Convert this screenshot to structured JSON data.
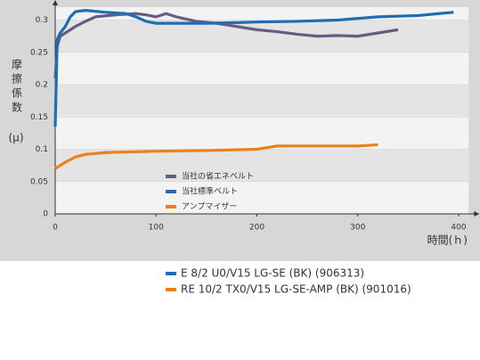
{
  "chart_data": {
    "type": "line",
    "ylabel": "摩擦係数",
    "yunit": "(μ)",
    "xlabel": "時間(ｈ)",
    "xlim": [
      0,
      410
    ],
    "ylim": [
      0,
      0.32
    ],
    "xticks": [
      0,
      100,
      200,
      300,
      400
    ],
    "yticks": [
      0,
      0.05,
      0.1,
      0.15,
      0.2,
      0.25,
      0.3
    ],
    "series": [
      {
        "name": "当社の省エネベルト",
        "color": "#6a5a84",
        "x": [
          0,
          2,
          5,
          10,
          20,
          30,
          40,
          60,
          80,
          90,
          100,
          110,
          120,
          140,
          160,
          180,
          200,
          220,
          240,
          260,
          280,
          300,
          320,
          340
        ],
        "values": [
          0.21,
          0.26,
          0.275,
          0.28,
          0.29,
          0.298,
          0.305,
          0.308,
          0.31,
          0.308,
          0.305,
          0.31,
          0.305,
          0.298,
          0.295,
          0.29,
          0.285,
          0.282,
          0.278,
          0.275,
          0.276,
          0.275,
          0.28,
          0.285
        ]
      },
      {
        "name": "当社標準ベルト",
        "color": "#1f6db3",
        "x": [
          0,
          2,
          5,
          10,
          15,
          20,
          30,
          50,
          70,
          80,
          90,
          100,
          120,
          150,
          180,
          200,
          240,
          280,
          320,
          360,
          380,
          395
        ],
        "values": [
          0.135,
          0.27,
          0.28,
          0.29,
          0.305,
          0.313,
          0.315,
          0.312,
          0.31,
          0.305,
          0.298,
          0.295,
          0.295,
          0.295,
          0.296,
          0.297,
          0.298,
          0.3,
          0.305,
          0.307,
          0.31,
          0.312
        ]
      },
      {
        "name": "アンプマイザー",
        "color": "#e8821e",
        "x": [
          0,
          5,
          10,
          20,
          30,
          50,
          80,
          100,
          150,
          200,
          220,
          260,
          300,
          320
        ],
        "values": [
          0.07,
          0.075,
          0.08,
          0.088,
          0.092,
          0.095,
          0.096,
          0.097,
          0.098,
          0.1,
          0.105,
          0.105,
          0.105,
          0.107
        ]
      }
    ],
    "notes": [
      {
        "text": "E 8/2 U0/V15 LG-SE (BK) (906313)",
        "color": "#1f6db3"
      },
      {
        "text": "RE 10/2 TX0/V15 LG-SE-AMP (BK) (901016)",
        "color": "#e8821e"
      }
    ]
  }
}
